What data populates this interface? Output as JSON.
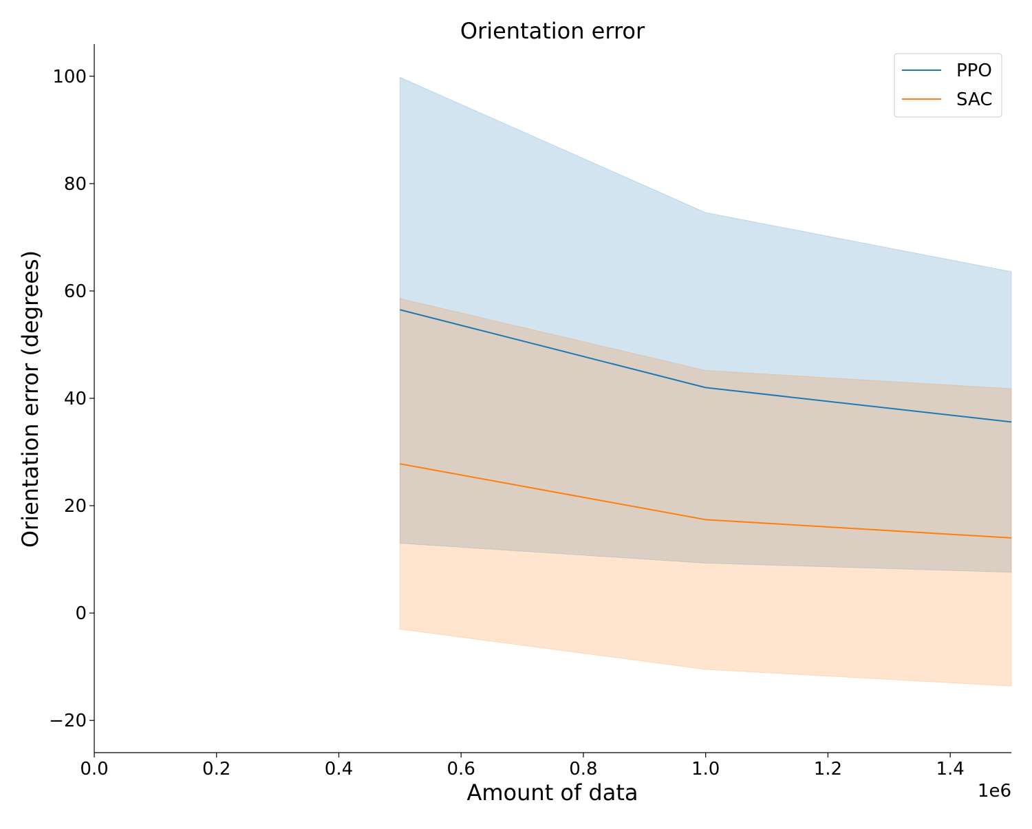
{
  "chart_data": {
    "type": "line",
    "title": "Orientation error",
    "xlabel": "Amount of data",
    "ylabel": "Orientation error (degrees)",
    "x_offset_label": "1e6",
    "xlim": [
      0.0,
      1.5
    ],
    "ylim": [
      -26,
      106
    ],
    "x_ticks": [
      0.0,
      0.2,
      0.4,
      0.6,
      0.8,
      1.0,
      1.2,
      1.4
    ],
    "x_tick_labels": [
      "0.0",
      "0.2",
      "0.4",
      "0.6",
      "0.8",
      "1.0",
      "1.2",
      "1.4"
    ],
    "y_ticks": [
      -20,
      0,
      20,
      40,
      60,
      80,
      100
    ],
    "y_tick_labels": [
      "−20",
      "0",
      "20",
      "40",
      "60",
      "80",
      "100"
    ],
    "grid": false,
    "legend_position": "top-right",
    "series": [
      {
        "name": "PPO",
        "color": "#1f77b4",
        "x": [
          0.5,
          1.0,
          1.5
        ],
        "y": [
          56.5,
          42.0,
          35.6
        ],
        "band_upper": [
          99.8,
          74.6,
          63.6
        ],
        "band_lower": [
          13.0,
          9.3,
          7.6
        ]
      },
      {
        "name": "SAC",
        "color": "#ff7f0e",
        "x": [
          0.5,
          1.0,
          1.5
        ],
        "y": [
          27.8,
          17.4,
          14.0
        ],
        "band_upper": [
          58.6,
          45.2,
          41.8
        ],
        "band_lower": [
          -3.0,
          -10.5,
          -13.6
        ]
      }
    ]
  }
}
